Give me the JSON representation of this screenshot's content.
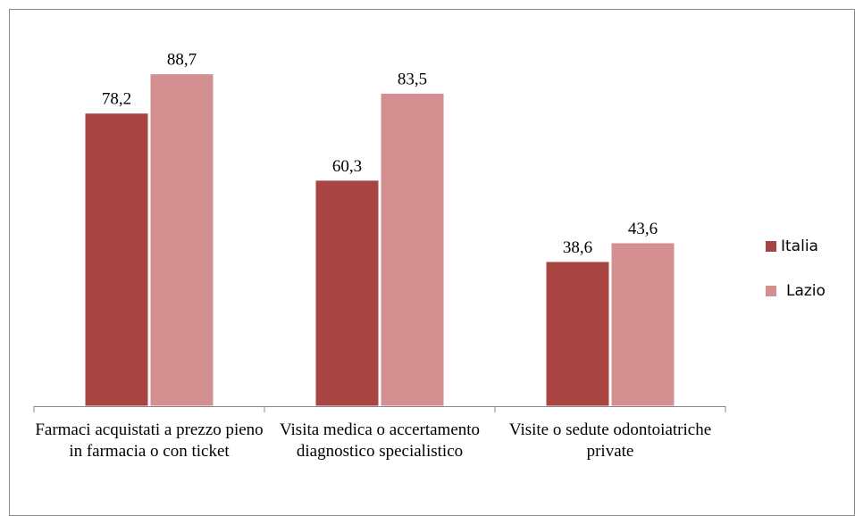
{
  "chart_data": {
    "type": "bar",
    "categories": [
      "Farmaci acquistati a prezzo pieno in farmacia o con ticket",
      "Visita medica o accertamento diagnostico specialistico",
      "Visite o sedute odontoiatriche private"
    ],
    "series": [
      {
        "name": "Italia",
        "color": "#a84441",
        "values": [
          78.2,
          60.3,
          38.6
        ],
        "value_labels": [
          "78,2",
          "60,3",
          "38,6"
        ]
      },
      {
        "name": "Lazio",
        "color": "#d49090",
        "values": [
          88.7,
          83.5,
          43.6
        ],
        "value_labels": [
          "88,7",
          "83,5",
          "43,6"
        ]
      }
    ],
    "ylim": [
      0,
      106
    ],
    "legend": "right"
  }
}
